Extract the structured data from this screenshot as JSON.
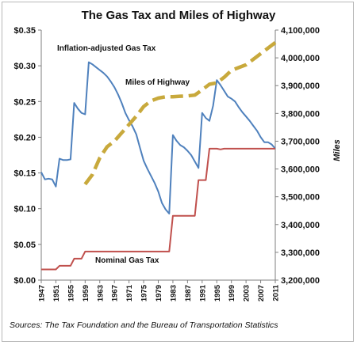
{
  "chart_data": {
    "type": "line",
    "title": "The Gas Tax and Miles of Highway",
    "y2label": "Miles",
    "source": "Sources:  The Tax Foundation and the Bureau of Transportation Statistics",
    "ylim": [
      0,
      0.35
    ],
    "y2lim": [
      3200000,
      4100000
    ],
    "y_ticks": [
      "$0.00",
      "$0.05",
      "$0.10",
      "$0.15",
      "$0.20",
      "$0.25",
      "$0.30",
      "$0.35"
    ],
    "y2_ticks": [
      "3,200,000",
      "3,300,000",
      "3,400,000",
      "3,500,000",
      "3,600,000",
      "3,700,000",
      "3,800,000",
      "3,900,000",
      "4,000,000",
      "4,100,000"
    ],
    "x_ticks": [
      "1947",
      "1951",
      "1955",
      "1959",
      "1963",
      "1967",
      "1971",
      "1975",
      "1979",
      "1983",
      "1987",
      "1991",
      "1995",
      "1999",
      "2003",
      "2007",
      "2011"
    ],
    "xlim": [
      1947,
      2011
    ],
    "grid": false,
    "series": [
      {
        "name": "Inflation-adjusted Gas Tax",
        "color": "#4f81bd",
        "axis": "left",
        "x": [
          1947,
          1948,
          1949,
          1950,
          1951,
          1952,
          1953,
          1954,
          1955,
          1956,
          1957,
          1958,
          1959,
          1960,
          1961,
          1962,
          1963,
          1964,
          1965,
          1966,
          1967,
          1968,
          1969,
          1970,
          1971,
          1972,
          1973,
          1974,
          1975,
          1976,
          1977,
          1978,
          1979,
          1980,
          1981,
          1982,
          1983,
          1984,
          1985,
          1986,
          1987,
          1988,
          1989,
          1990,
          1991,
          1992,
          1993,
          1994,
          1995,
          1996,
          1997,
          1998,
          1999,
          2000,
          2001,
          2002,
          2003,
          2004,
          2005,
          2006,
          2007,
          2008,
          2009,
          2010,
          2011
        ],
        "values": [
          0.151,
          0.141,
          0.142,
          0.141,
          0.131,
          0.17,
          0.168,
          0.168,
          0.169,
          0.248,
          0.24,
          0.234,
          0.232,
          0.305,
          0.302,
          0.298,
          0.294,
          0.29,
          0.285,
          0.278,
          0.27,
          0.26,
          0.248,
          0.234,
          0.224,
          0.215,
          0.204,
          0.185,
          0.167,
          0.156,
          0.146,
          0.136,
          0.124,
          0.108,
          0.099,
          0.093,
          0.203,
          0.195,
          0.189,
          0.186,
          0.181,
          0.175,
          0.166,
          0.157,
          0.234,
          0.227,
          0.223,
          0.244,
          0.28,
          0.273,
          0.265,
          0.257,
          0.254,
          0.25,
          0.242,
          0.235,
          0.229,
          0.223,
          0.216,
          0.209,
          0.2,
          0.193,
          0.193,
          0.19,
          0.184
        ]
      },
      {
        "name": "Miles of Highway",
        "color": "#c8a93c",
        "axis": "right",
        "dashed": true,
        "x": [
          1959,
          1961,
          1963,
          1965,
          1967,
          1969,
          1971,
          1973,
          1975,
          1977,
          1979,
          1981,
          1983,
          1985,
          1987,
          1989,
          1991,
          1993,
          1995,
          1997,
          1999,
          2001,
          2003,
          2005,
          2007,
          2009,
          2011
        ],
        "values": [
          3545000,
          3580000,
          3640000,
          3680000,
          3700000,
          3730000,
          3760000,
          3790000,
          3825000,
          3845000,
          3855000,
          3860000,
          3860000,
          3862000,
          3863000,
          3866000,
          3885000,
          3905000,
          3910000,
          3930000,
          3955000,
          3965000,
          3975000,
          3995000,
          4015000,
          4035000,
          4055000
        ]
      },
      {
        "name": "Nominal Gas Tax",
        "color": "#c0504d",
        "axis": "left",
        "x": [
          1947,
          1951,
          1952,
          1955,
          1956,
          1958,
          1959,
          1982,
          1983,
          1989,
          1990,
          1992,
          1993,
          1995,
          1996,
          1997,
          2011
        ],
        "values": [
          0.015,
          0.015,
          0.02,
          0.02,
          0.03,
          0.03,
          0.04,
          0.04,
          0.09,
          0.09,
          0.14,
          0.14,
          0.184,
          0.184,
          0.183,
          0.184,
          0.184
        ]
      }
    ]
  }
}
